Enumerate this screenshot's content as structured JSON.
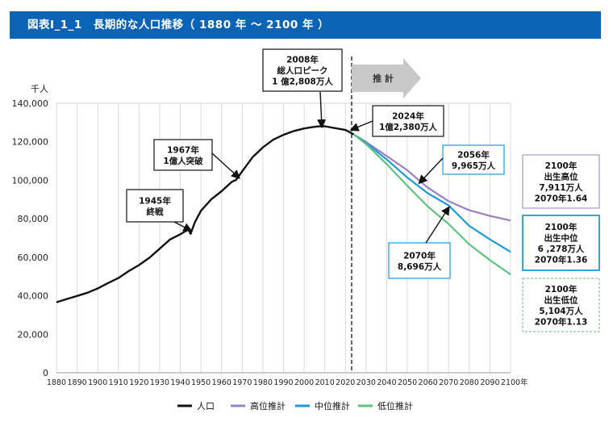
{
  "title": "図表Ⅰ_1_1　長期的な人口推移（ 1880 年 〜 2100 年 ）",
  "chart_data": {
    "type": "line",
    "ylabel": "千人",
    "xlabel": "年",
    "xlim": [
      1880,
      2100
    ],
    "ylim": [
      0,
      140000
    ],
    "xticks": [
      "1880",
      "1890",
      "1900",
      "1910",
      "1920",
      "1930",
      "1940",
      "1950",
      "1960",
      "1970",
      "1980",
      "1990",
      "2000",
      "2010",
      "2020",
      "2030",
      "2040",
      "2050",
      "2060",
      "2070",
      "2080",
      "2090",
      "2100"
    ],
    "yticks": [
      "0",
      "20,000",
      "40,000",
      "60,000",
      "80,000",
      "100,000",
      "120,000",
      "140,000"
    ],
    "projection_label": "推 計",
    "projection_start_year": 2023,
    "series": [
      {
        "name": "人口",
        "color": "#111111",
        "points": [
          [
            1880,
            36650
          ],
          [
            1885,
            38300
          ],
          [
            1890,
            39900
          ],
          [
            1895,
            41600
          ],
          [
            1900,
            43800
          ],
          [
            1905,
            46600
          ],
          [
            1910,
            49200
          ],
          [
            1915,
            52800
          ],
          [
            1920,
            55960
          ],
          [
            1925,
            59740
          ],
          [
            1930,
            64450
          ],
          [
            1935,
            69250
          ],
          [
            1940,
            71930
          ],
          [
            1943,
            73800
          ],
          [
            1944,
            74400
          ],
          [
            1945,
            72150
          ],
          [
            1947,
            78100
          ],
          [
            1950,
            84110
          ],
          [
            1955,
            90080
          ],
          [
            1960,
            94300
          ],
          [
            1965,
            99210
          ],
          [
            1967,
            100200
          ],
          [
            1970,
            104660
          ],
          [
            1975,
            111940
          ],
          [
            1980,
            117060
          ],
          [
            1985,
            121050
          ],
          [
            1990,
            123610
          ],
          [
            1995,
            125570
          ],
          [
            2000,
            126930
          ],
          [
            2005,
            127770
          ],
          [
            2008,
            128084
          ],
          [
            2010,
            128057
          ],
          [
            2015,
            127095
          ],
          [
            2020,
            126146
          ],
          [
            2024,
            123800
          ]
        ]
      },
      {
        "name": "高位推計",
        "color": "#9b7fc4",
        "points": [
          [
            2024,
            123800
          ],
          [
            2030,
            119900
          ],
          [
            2040,
            112600
          ],
          [
            2050,
            105200
          ],
          [
            2056,
            99650
          ],
          [
            2060,
            96100
          ],
          [
            2070,
            89100
          ],
          [
            2080,
            84400
          ],
          [
            2090,
            81500
          ],
          [
            2100,
            79110
          ]
        ]
      },
      {
        "name": "中位推計",
        "color": "#1a9bd7",
        "points": [
          [
            2024,
            123800
          ],
          [
            2030,
            119400
          ],
          [
            2040,
            110800
          ],
          [
            2050,
            101400
          ],
          [
            2060,
            93200
          ],
          [
            2070,
            86960
          ],
          [
            2080,
            76300
          ],
          [
            2090,
            69300
          ],
          [
            2100,
            62780
          ]
        ]
      },
      {
        "name": "低位推計",
        "color": "#5fc27d",
        "points": [
          [
            2024,
            123800
          ],
          [
            2030,
            118800
          ],
          [
            2040,
            108400
          ],
          [
            2050,
            97100
          ],
          [
            2060,
            86300
          ],
          [
            2070,
            77300
          ],
          [
            2080,
            66700
          ],
          [
            2090,
            58500
          ],
          [
            2100,
            51040
          ]
        ]
      }
    ],
    "annotations": [
      {
        "lines": [
          "2008年",
          "総人口ピーク",
          "1 億2,808万人"
        ],
        "color": "#111111"
      },
      {
        "lines": [
          "2024年",
          "1億2,380万人"
        ],
        "color": "#111111"
      },
      {
        "lines": [
          "1967年",
          "1億人突破"
        ],
        "color": "#111111"
      },
      {
        "lines": [
          "1945年",
          "終戦"
        ],
        "color": "#111111"
      },
      {
        "lines": [
          "2056年",
          "9,965万人"
        ],
        "color": "#1a9bd7"
      },
      {
        "lines": [
          "2070年",
          "8,696万人"
        ],
        "color": "#1a9bd7"
      },
      {
        "lines": [
          "2100年",
          "出生高位",
          "7,911万人",
          "2070年1.64"
        ],
        "color": "#9b7fc4"
      },
      {
        "lines": [
          "2100年",
          "出生中位",
          "6 ,278万人",
          "2070年1.36"
        ],
        "color": "#1a9bd7"
      },
      {
        "lines": [
          "2100年",
          "出生低位",
          "5,104万人",
          "2070年1.13"
        ],
        "color": "#5fc27d"
      }
    ]
  }
}
